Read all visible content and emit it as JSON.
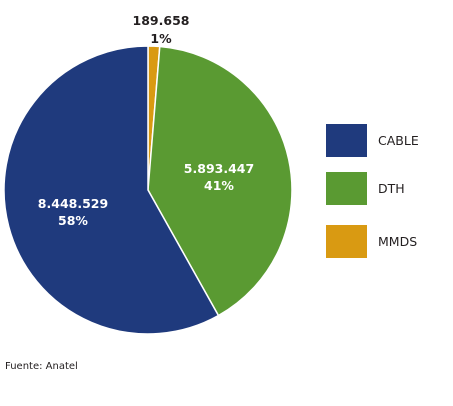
{
  "chart_data": {
    "type": "pie",
    "slices": [
      {
        "name": "CABLE",
        "value": 8448529,
        "value_label": "8.448.529",
        "percent_label": "58%",
        "color": "#1f3a7d"
      },
      {
        "name": "DTH",
        "value": 5893447,
        "value_label": "5.893.447",
        "percent_label": "41%",
        "color": "#5a9a32"
      },
      {
        "name": "MMDS",
        "value": 189658,
        "value_label": "189.658",
        "percent_label": "1%",
        "color": "#d99a12"
      }
    ],
    "legend": {
      "position": "right"
    },
    "start_angle_deg": 0,
    "direction": "clockwise"
  },
  "source": "Fuente: Anatel"
}
